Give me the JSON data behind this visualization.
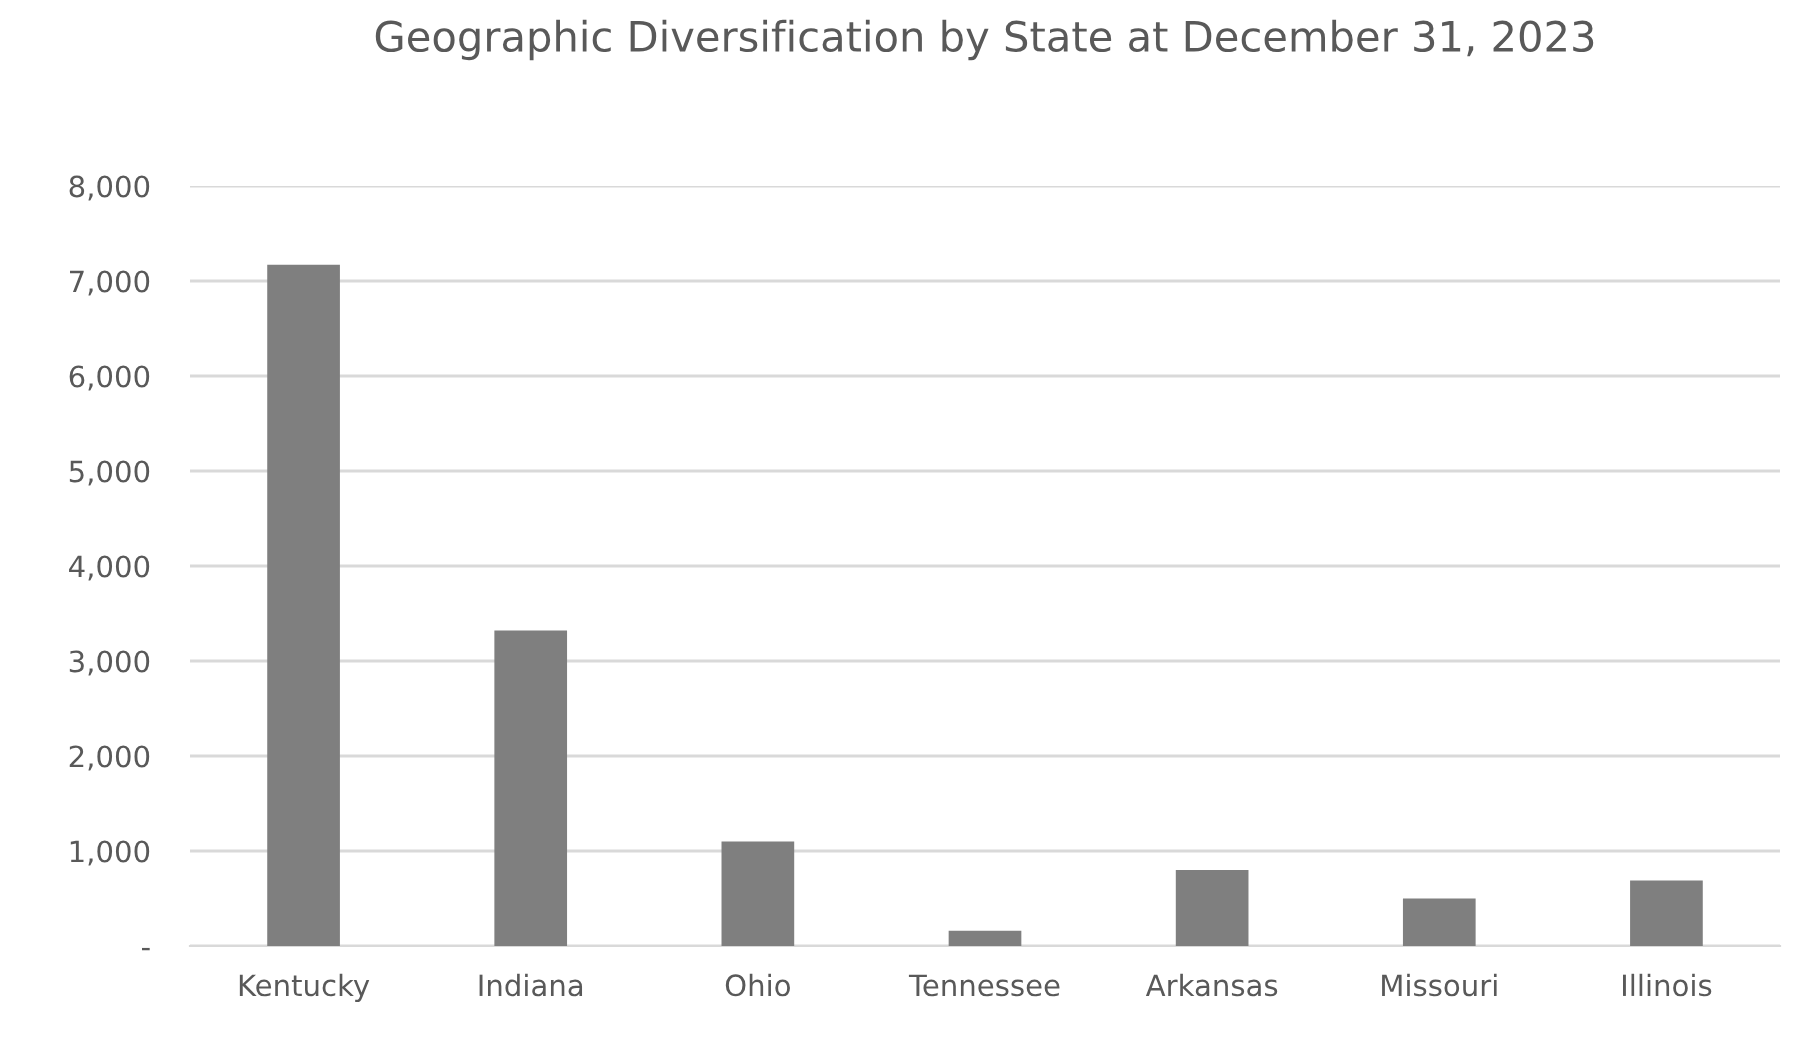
{
  "chart_data": {
    "type": "bar",
    "title": "Geographic Diversification by State at December 31, 2023",
    "categories": [
      "Kentucky",
      "Indiana",
      "Ohio",
      "Tennessee",
      "Arkansas",
      "Missouri",
      "Illinois"
    ],
    "values": [
      7170,
      3320,
      1100,
      160,
      800,
      500,
      690
    ],
    "color": "#7f7f7f",
    "ylim": [
      0,
      8000
    ],
    "yticks": [
      {
        "value": 0,
        "label": "-"
      },
      {
        "value": 1000,
        "label": "1,000"
      },
      {
        "value": 2000,
        "label": "2,000"
      },
      {
        "value": 3000,
        "label": "3,000"
      },
      {
        "value": 4000,
        "label": "4,000"
      },
      {
        "value": 5000,
        "label": "5,000"
      },
      {
        "value": 6000,
        "label": "6,000"
      },
      {
        "value": 7000,
        "label": "7,000"
      },
      {
        "value": 8000,
        "label": "8,000"
      }
    ],
    "grid": "y",
    "legend": false
  }
}
